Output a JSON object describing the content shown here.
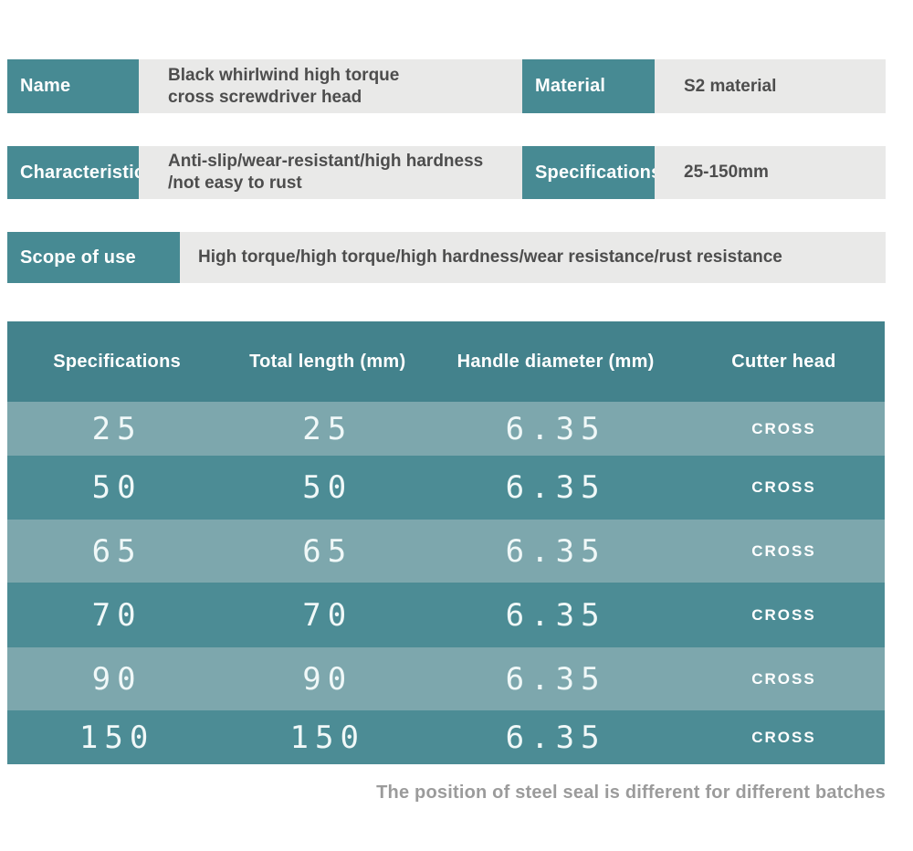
{
  "info_rows": [
    {
      "label": "Name",
      "value": "Black whirlwind high torque\ncross screwdriver head"
    },
    {
      "label": "Material",
      "value": "S2 material"
    },
    {
      "label": "Characteristic",
      "value": "Anti-slip/wear-resistant/high hardness\n/not easy to rust"
    },
    {
      "label": "Specifications",
      "value": "25-150mm"
    },
    {
      "label": "Scope of use",
      "value": "High torque/high torque/high hardness/wear resistance/rust resistance"
    }
  ],
  "spec_table": {
    "headers": [
      "Specifications",
      "Total length (mm)",
      "Handle diameter (mm)",
      "Cutter head"
    ],
    "rows": [
      [
        "25",
        "25",
        "6.35",
        "CROSS"
      ],
      [
        "50",
        "50",
        "6.35",
        "CROSS"
      ],
      [
        "65",
        "65",
        "6.35",
        "CROSS"
      ],
      [
        "70",
        "70",
        "6.35",
        "CROSS"
      ],
      [
        "90",
        "90",
        "6.35",
        "CROSS"
      ],
      [
        "150",
        "150",
        "6.35",
        "CROSS"
      ]
    ]
  },
  "footnote": "The position of steel seal is different for different batches",
  "colors": {
    "accent_teal": "#478A93",
    "table_header_teal": "#43828C",
    "row_dark_teal": "#4C8C95",
    "row_light_teal": "#7DA7AD",
    "value_bg_gray": "#E9E9E8",
    "footnote_gray": "#9B9B9B"
  }
}
